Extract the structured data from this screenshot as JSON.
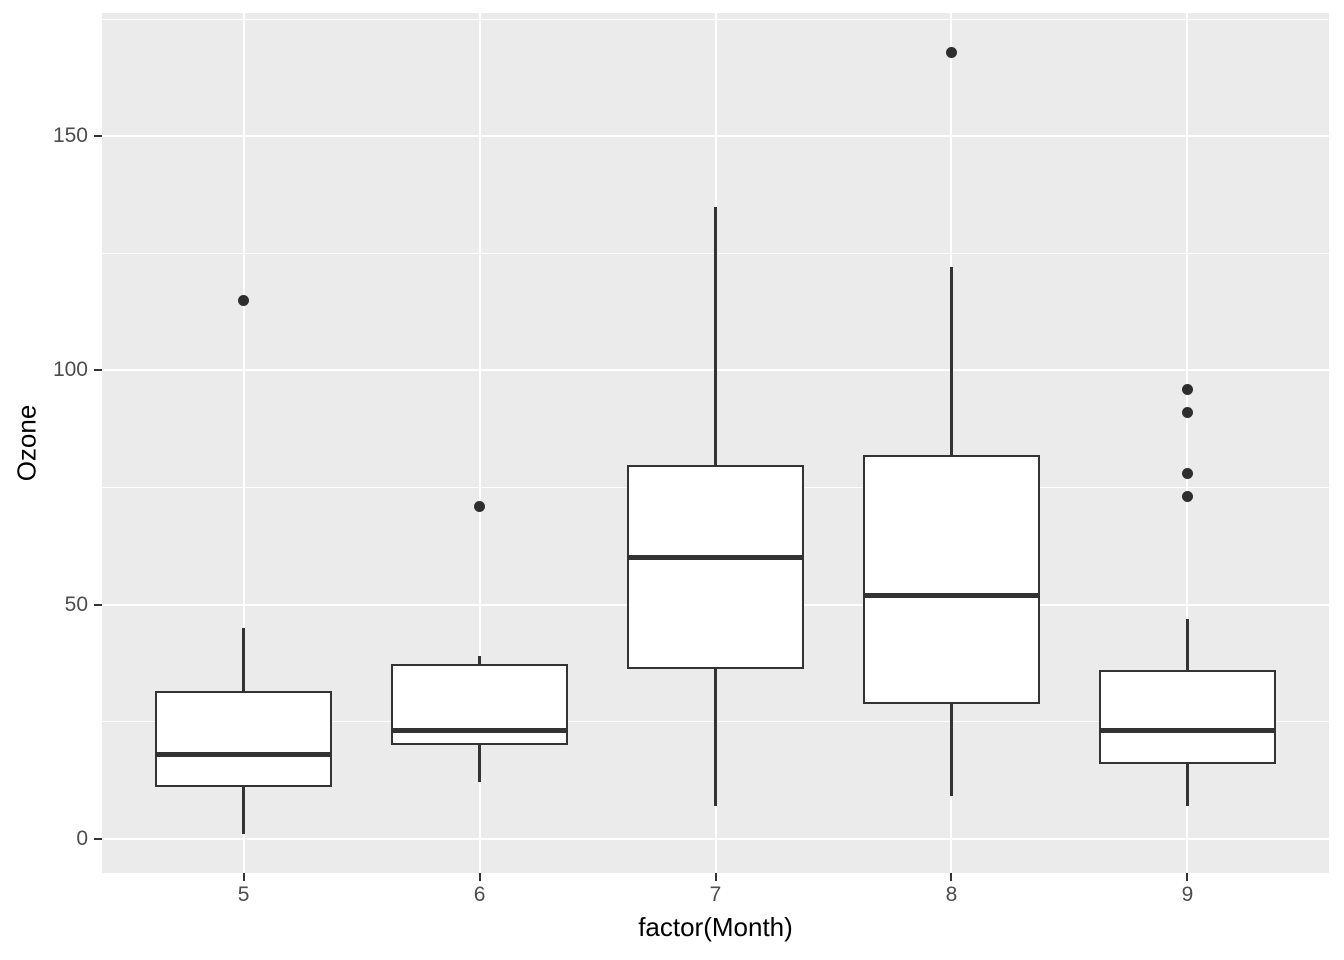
{
  "chart_data": {
    "type": "boxplot",
    "title": "",
    "xlabel": "factor(Month)",
    "ylabel": "Ozone",
    "categories": [
      "5",
      "6",
      "7",
      "8",
      "9"
    ],
    "y_major_ticks": [
      0,
      50,
      100,
      150
    ],
    "y_tick_labels": [
      "0",
      "50",
      "100",
      "150"
    ],
    "y_minor_ticks": [
      25,
      75,
      125,
      175
    ],
    "ylim": [
      -7.35,
      176.35
    ],
    "grid": true,
    "legend_position": "none",
    "series": [
      {
        "category": "5",
        "lower_whisker": 1,
        "q1": 11,
        "median": 18,
        "q3": 31.5,
        "upper_whisker": 45,
        "outliers": [
          115
        ]
      },
      {
        "category": "6",
        "lower_whisker": 12,
        "q1": 20,
        "median": 23,
        "q3": 37.25,
        "upper_whisker": 39,
        "outliers": [
          71
        ]
      },
      {
        "category": "7",
        "lower_whisker": 7,
        "q1": 36.25,
        "median": 60,
        "q3": 79.75,
        "upper_whisker": 135,
        "outliers": []
      },
      {
        "category": "8",
        "lower_whisker": 9,
        "q1": 28.75,
        "median": 52,
        "q3": 82,
        "upper_whisker": 122,
        "outliers": [
          168
        ]
      },
      {
        "category": "9",
        "lower_whisker": 7,
        "q1": 16,
        "median": 23,
        "q3": 36,
        "upper_whisker": 47,
        "outliers": [
          96,
          91,
          78,
          73
        ]
      }
    ],
    "colors": {
      "panel_bg": "#EBEBEB",
      "grid": "#FFFFFF",
      "box_border": "#333333",
      "box_fill": "#FFFFFF",
      "median": "#333333",
      "outlier": "#2E2E2E",
      "tick_mark": "#333333",
      "tick_label": "#4D4D4D",
      "axis_title": "#000000"
    }
  }
}
